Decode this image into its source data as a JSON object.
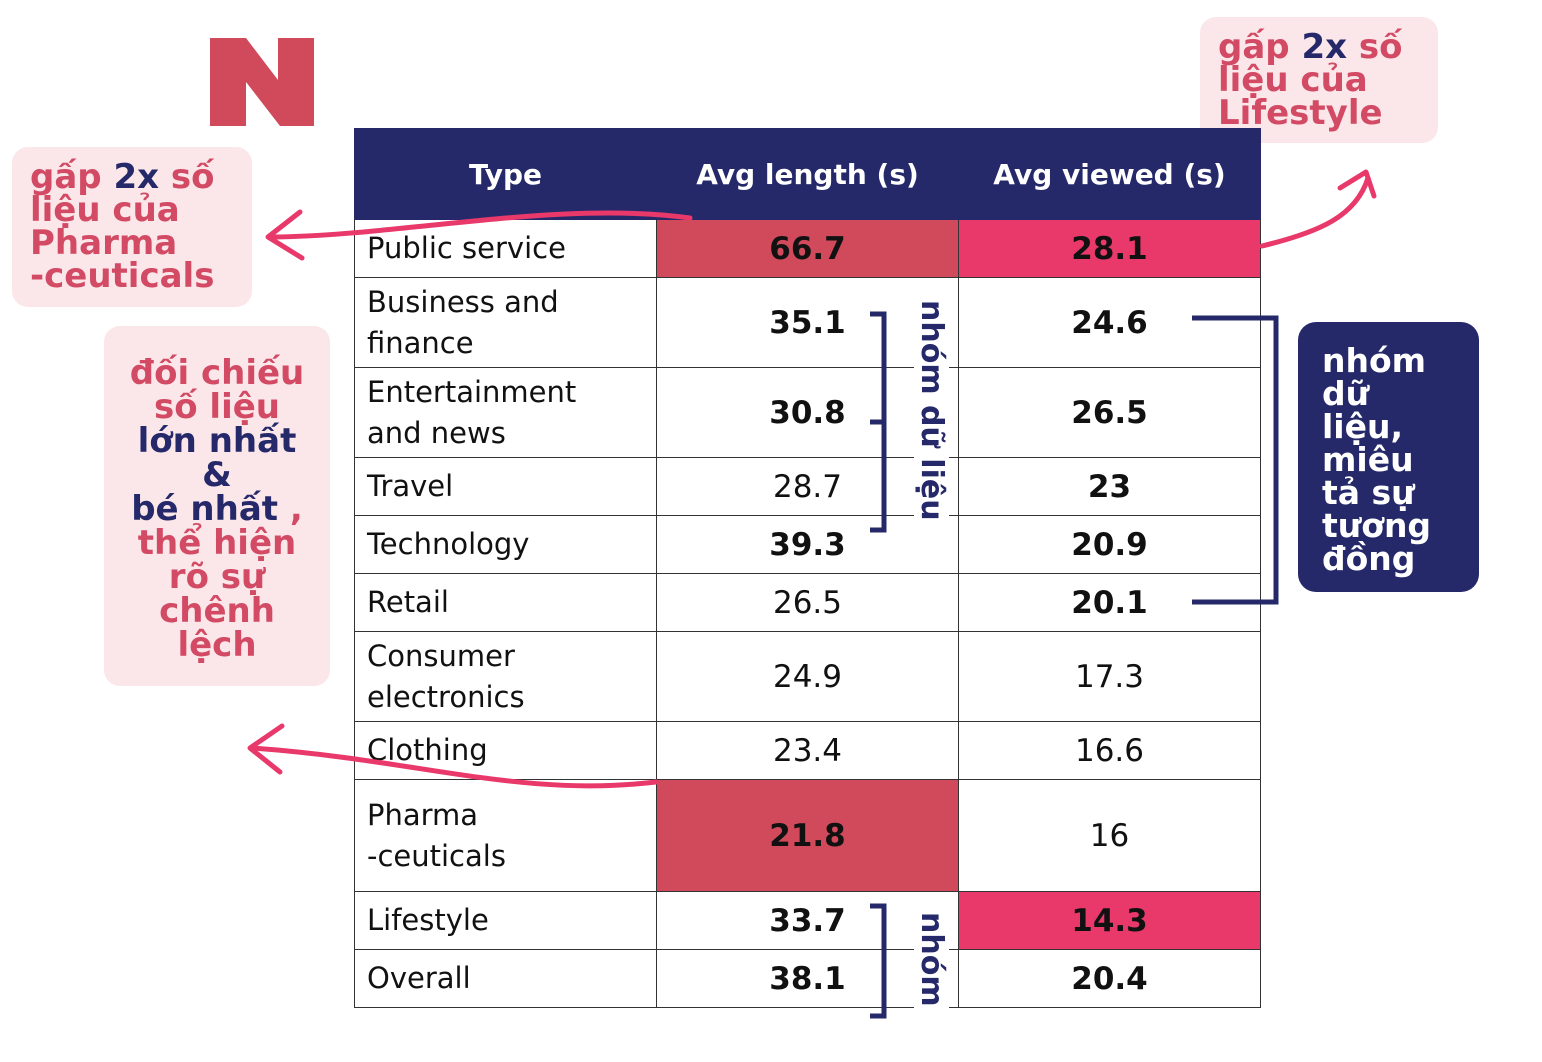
{
  "notes": {
    "left": {
      "line1a": "gấp ",
      "line1b": "2x",
      "line1c": " số",
      "line2": "liệu  của",
      "line3": "Pharma",
      "line4": "-ceuticals"
    },
    "right": {
      "line1a": "gấp ",
      "line1b": "2x",
      "line1c": " số",
      "line2": "liệu  của",
      "line3": "Lifestyle"
    },
    "middle": {
      "line1": "đối chiếu",
      "line2": "số liệu",
      "line3": "lớn nhất",
      "line4": "&",
      "line5a": "bé nhất",
      "line5b": " ,",
      "line6": "thể hiện",
      "line7": "rõ sự",
      "line8": "chênh",
      "line9": "lệch"
    },
    "dark": {
      "line1": "nhóm",
      "line2": "dữ",
      "line3": "liệu,",
      "line4": "miêu",
      "line5": "tả sự",
      "line6": "tương",
      "line7": "đồng"
    }
  },
  "bracket_labels": {
    "group1": "nhóm dữ liệu",
    "group2": "nhóm"
  },
  "colors": {
    "navy": "#25296a",
    "rose": "#d04a5c",
    "pink": "#e9386a",
    "light_blue": "#6a8fc3",
    "note_bg": "#fbe6e9"
  },
  "chart_data": {
    "type": "table",
    "columns": [
      "Type",
      "Avg length (s)",
      "Avg viewed (s)"
    ],
    "rows": [
      [
        "Public service",
        "66.7",
        "28.1"
      ],
      [
        "Business and finance",
        "35.1",
        "24.6"
      ],
      [
        "Entertainment and news",
        "30.8",
        "26.5"
      ],
      [
        "Travel",
        "28.7",
        "23"
      ],
      [
        "Technology",
        "39.3",
        "20.9"
      ],
      [
        "Retail",
        "26.5",
        "20.1"
      ],
      [
        "Consumer electronics",
        "24.9",
        "17.3"
      ],
      [
        "Clothing",
        "23.4",
        "16.6"
      ],
      [
        "Pharma -ceuticals",
        "21.8",
        "16"
      ],
      [
        "Lifestyle",
        "33.7",
        "14.3"
      ],
      [
        "Overall",
        "38.1",
        "20.4"
      ]
    ],
    "row_lines": [
      [
        "Public service"
      ],
      [
        "Business and",
        "finance"
      ],
      [
        "Entertainment",
        "and news"
      ],
      [
        "Travel"
      ],
      [
        "Technology"
      ],
      [
        "Retail"
      ],
      [
        "Consumer",
        "electronics"
      ],
      [
        "Clothing"
      ],
      [
        "Pharma",
        "-ceuticals"
      ],
      [
        "Lifestyle"
      ],
      [
        "Overall"
      ]
    ],
    "highlights": {
      "length_max": "Public service",
      "length_min": "Pharma -ceuticals",
      "viewed_max": "Public service",
      "viewed_min": "Lifestyle"
    }
  }
}
